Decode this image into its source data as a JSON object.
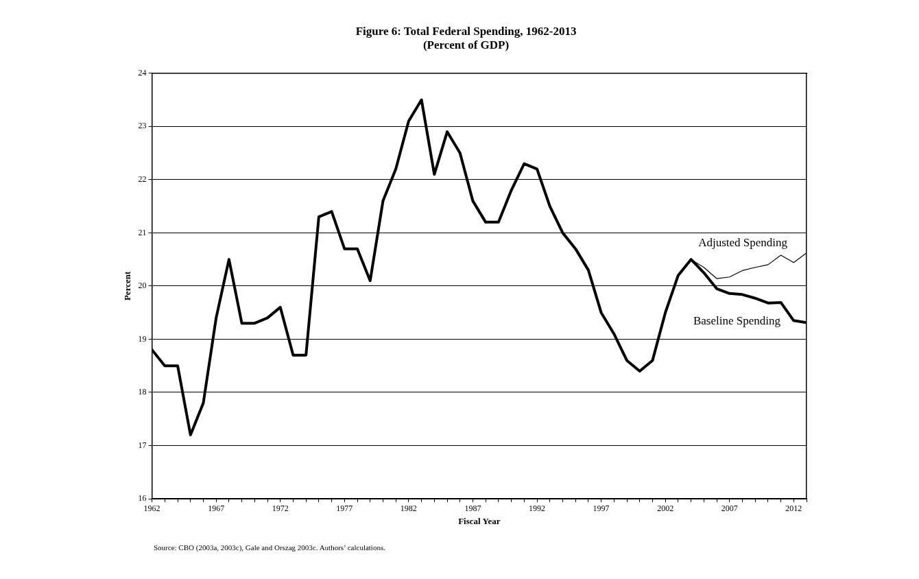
{
  "chart_data": {
    "type": "line",
    "title": "Figure 6: Total Federal Spending, 1962-2013",
    "subtitle": "(Percent of GDP)",
    "xlabel": "Fiscal Year",
    "ylabel": "Percent",
    "x": [
      1962,
      1963,
      1964,
      1965,
      1966,
      1967,
      1968,
      1969,
      1970,
      1971,
      1972,
      1973,
      1974,
      1975,
      1976,
      1977,
      1978,
      1979,
      1980,
      1981,
      1982,
      1983,
      1984,
      1985,
      1986,
      1987,
      1988,
      1989,
      1990,
      1991,
      1992,
      1993,
      1994,
      1995,
      1996,
      1997,
      1998,
      1999,
      2000,
      2001,
      2002,
      2003,
      2004,
      2005,
      2006,
      2007,
      2008,
      2009,
      2010,
      2011,
      2012,
      2013
    ],
    "series": [
      {
        "name": "Adjusted Spending",
        "color": "#000000",
        "x": [
          2004,
          2005,
          2006,
          2007,
          2008,
          2009,
          2010,
          2011,
          2012,
          2013
        ],
        "values": [
          20.5,
          20.35,
          20.14,
          20.17,
          20.29,
          20.35,
          20.4,
          20.58,
          20.44,
          20.62
        ]
      },
      {
        "name": "Baseline Spending",
        "color": "#000000",
        "values": [
          18.8,
          18.5,
          18.5,
          17.2,
          17.8,
          19.4,
          20.5,
          19.3,
          19.3,
          19.4,
          19.6,
          18.7,
          18.7,
          21.3,
          21.4,
          20.7,
          20.7,
          20.1,
          21.6,
          22.2,
          23.1,
          23.5,
          22.1,
          22.9,
          22.5,
          21.6,
          21.2,
          21.2,
          21.8,
          22.3,
          22.2,
          21.5,
          21.0,
          20.7,
          20.3,
          19.5,
          19.1,
          18.6,
          18.4,
          18.6,
          19.5,
          20.2,
          20.5,
          20.25,
          19.95,
          19.86,
          19.84,
          19.77,
          19.68,
          19.69,
          19.35,
          19.31
        ]
      }
    ],
    "xlim": [
      1962,
      2013
    ],
    "xticks": [
      1962,
      {
        "value": 1963,
        "label": null
      },
      {
        "value": 1964,
        "label": null
      },
      {
        "value": 1965,
        "label": null
      },
      {
        "value": 1966,
        "label": null
      },
      1967,
      {
        "value": 1968,
        "label": null
      },
      {
        "value": 1969,
        "label": null
      },
      {
        "value": 1970,
        "label": null
      },
      {
        "value": 1971,
        "label": null
      },
      1972,
      {
        "value": 1973,
        "label": null
      },
      {
        "value": 1974,
        "label": null
      },
      {
        "value": 1975,
        "label": null
      },
      {
        "value": 1976,
        "label": null
      },
      1977,
      {
        "value": 1978,
        "label": null
      },
      {
        "value": 1979,
        "label": null
      },
      {
        "value": 1980,
        "label": null
      },
      {
        "value": 1981,
        "label": null
      },
      1982,
      {
        "value": 1983,
        "label": null
      },
      {
        "value": 1984,
        "label": null
      },
      {
        "value": 1985,
        "label": null
      },
      {
        "value": 1986,
        "label": null
      },
      1987,
      {
        "value": 1988,
        "label": null
      },
      {
        "value": 1989,
        "label": null
      },
      {
        "value": 1990,
        "label": null
      },
      {
        "value": 1991,
        "label": null
      },
      1992,
      {
        "value": 1993,
        "label": null
      },
      {
        "value": 1994,
        "label": null
      },
      {
        "value": 1995,
        "label": null
      },
      {
        "value": 1996,
        "label": null
      },
      1997,
      {
        "value": 1998,
        "label": null
      },
      {
        "value": 1999,
        "label": null
      },
      {
        "value": 2000,
        "label": null
      },
      {
        "value": 2001,
        "label": null
      },
      2002,
      {
        "value": 2003,
        "label": null
      },
      {
        "value": 2004,
        "label": null
      },
      {
        "value": 2005,
        "label": null
      },
      {
        "value": 2006,
        "label": null
      },
      2007,
      {
        "value": 2008,
        "label": null
      },
      {
        "value": 2009,
        "label": null
      },
      {
        "value": 2010,
        "label": null
      },
      {
        "value": 2011,
        "label": null
      },
      2012,
      {
        "value": 2013,
        "label": null
      }
    ],
    "ylim": [
      16,
      24
    ],
    "yticks": [
      16,
      17,
      18,
      19,
      20,
      21,
      22,
      23,
      24
    ],
    "grid": "y",
    "legend": false,
    "marker": "none",
    "line_style": "solid",
    "annotations": [
      "Source: CBO (2003a, 2003c), Gale and  Orszag 2003c. Authors’ calculations."
    ]
  }
}
